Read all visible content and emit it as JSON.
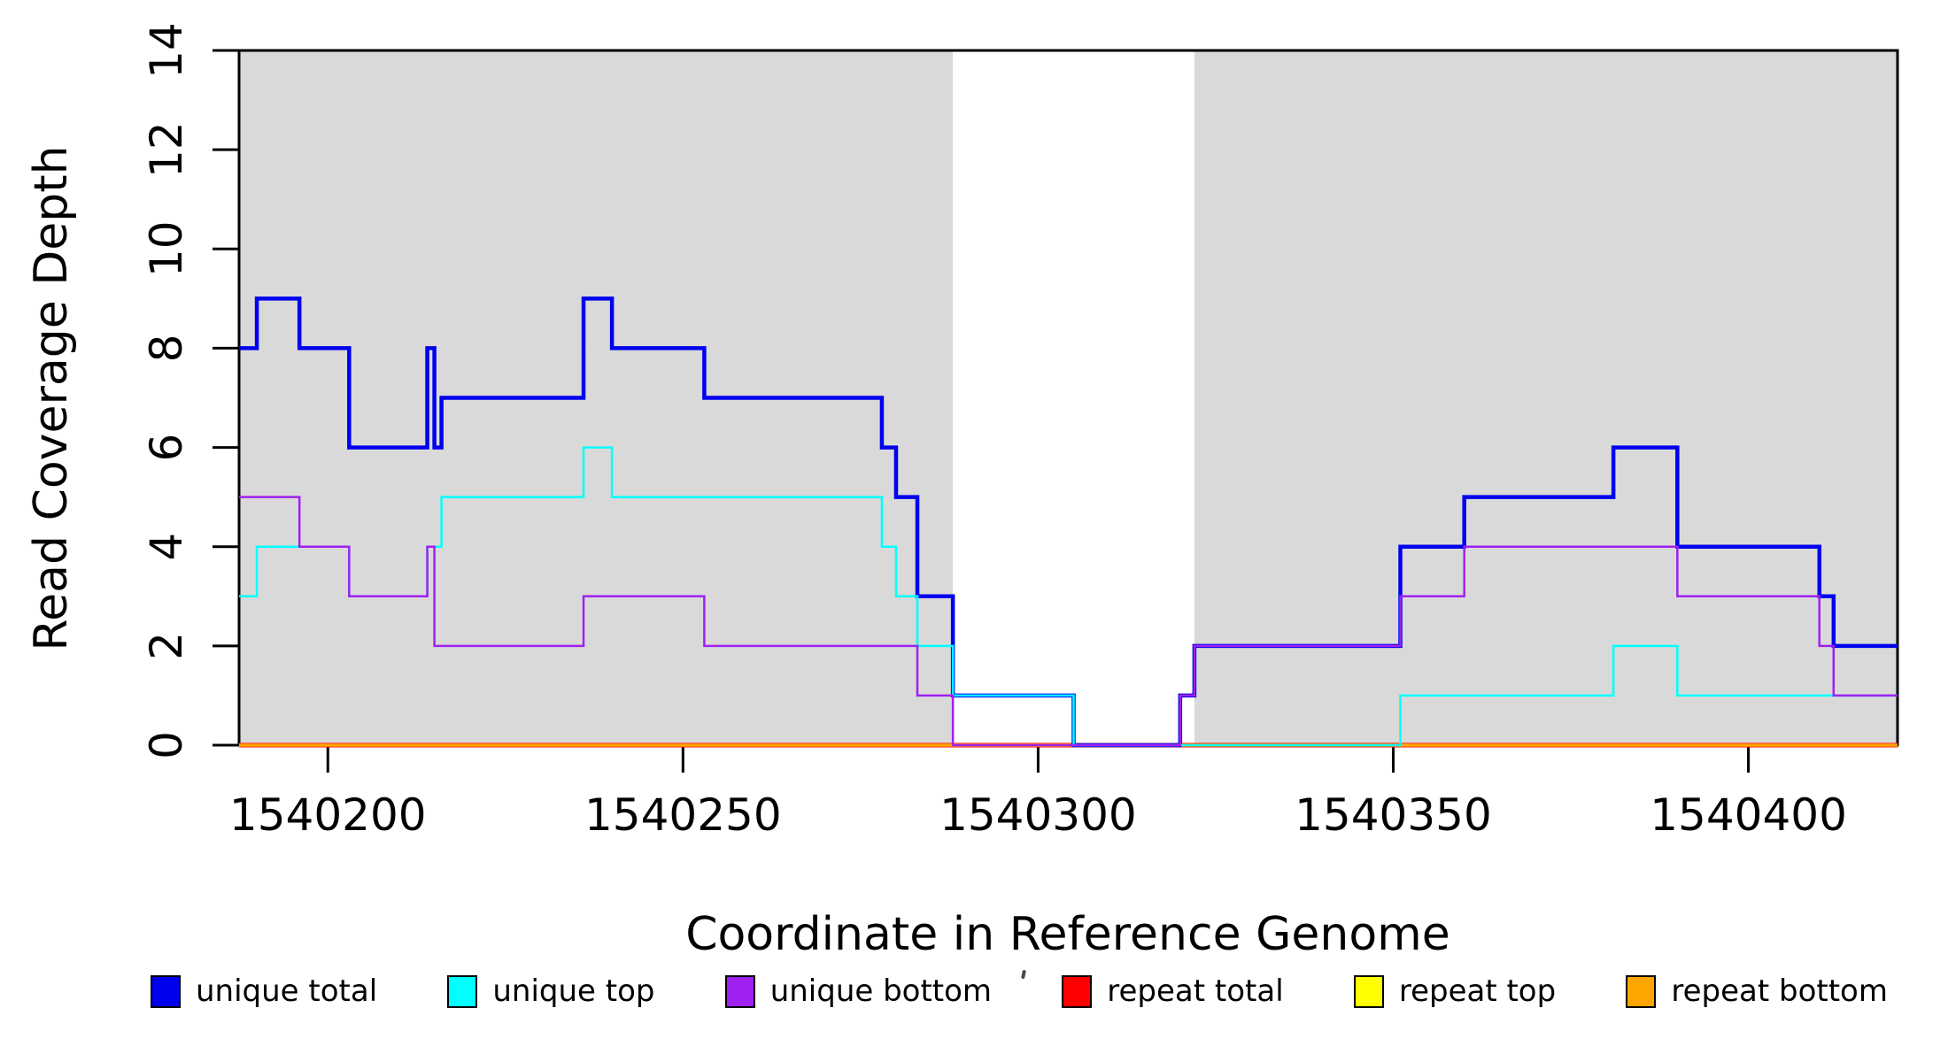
{
  "figure": {
    "y_axis_title": "Read Coverage Depth",
    "x_axis_title": "Coordinate in Reference Genome"
  },
  "chart_data": {
    "type": "line",
    "subtype": "step",
    "title": "",
    "xlabel": "Coordinate in Reference Genome",
    "ylabel": "Read Coverage Depth",
    "xlim": [
      1540187.5,
      1540421
    ],
    "ylim": [
      0,
      14
    ],
    "x_ticks": [
      1540200,
      1540250,
      1540300,
      1540350,
      1540400
    ],
    "y_ticks": [
      0,
      2,
      4,
      6,
      8,
      10,
      12,
      14
    ],
    "grid": false,
    "legend_position": "bottom",
    "colors": {
      "unique_total": "#0000F0",
      "unique_top": "#00FFFF",
      "unique_bottom": "#A020F0",
      "repeat_total": "#FF0000",
      "repeat_top": "#FFFF00",
      "repeat_bottom": "#FFA500",
      "shaded_region": "#D9D9D9",
      "axis": "#000000"
    },
    "background_regions": [
      {
        "name": "left-shaded-region",
        "x0": 1540187.5,
        "x1": 1540288,
        "color": "#D9D9D9"
      },
      {
        "name": "right-shaded-region",
        "x0": 1540322,
        "x1": 1540421,
        "color": "#D9D9D9"
      }
    ],
    "series": [
      {
        "name": "repeat total",
        "color": "#FF0000",
        "line_width": 5,
        "steps": [
          [
            1540187.5,
            0
          ]
        ]
      },
      {
        "name": "repeat top",
        "color": "#FFFF00",
        "line_width": 2.5,
        "steps": [
          [
            1540187.5,
            0
          ]
        ]
      },
      {
        "name": "repeat bottom",
        "color": "#FFA500",
        "line_width": 3.5,
        "steps": [
          [
            1540187.5,
            0
          ]
        ]
      },
      {
        "name": "unique total",
        "color": "#0000F0",
        "line_width": 4.5,
        "steps": [
          [
            1540187.5,
            8
          ],
          [
            1540190,
            9
          ],
          [
            1540196,
            8
          ],
          [
            1540203,
            6
          ],
          [
            1540214,
            8
          ],
          [
            1540215,
            6
          ],
          [
            1540216,
            7
          ],
          [
            1540236,
            9
          ],
          [
            1540240,
            8
          ],
          [
            1540253,
            7
          ],
          [
            1540278,
            6
          ],
          [
            1540280,
            5
          ],
          [
            1540283,
            3
          ],
          [
            1540288,
            1
          ],
          [
            1540305,
            0
          ],
          [
            1540320,
            1
          ],
          [
            1540322,
            2
          ],
          [
            1540351,
            4
          ],
          [
            1540360,
            5
          ],
          [
            1540381,
            6
          ],
          [
            1540390,
            4
          ],
          [
            1540410,
            3
          ],
          [
            1540412,
            2
          ]
        ]
      },
      {
        "name": "unique top",
        "color": "#00FFFF",
        "line_width": 2.5,
        "steps": [
          [
            1540187.5,
            3
          ],
          [
            1540190,
            4
          ],
          [
            1540203,
            3
          ],
          [
            1540214,
            4
          ],
          [
            1540216,
            5
          ],
          [
            1540236,
            6
          ],
          [
            1540240,
            5
          ],
          [
            1540278,
            4
          ],
          [
            1540280,
            3
          ],
          [
            1540283,
            2
          ],
          [
            1540288,
            1
          ],
          [
            1540305,
            0
          ],
          [
            1540351,
            1
          ],
          [
            1540381,
            2
          ],
          [
            1540390,
            1
          ]
        ]
      },
      {
        "name": "unique bottom",
        "color": "#A020F0",
        "line_width": 2.5,
        "steps": [
          [
            1540187.5,
            5
          ],
          [
            1540196,
            4
          ],
          [
            1540203,
            3
          ],
          [
            1540214,
            4
          ],
          [
            1540215,
            2
          ],
          [
            1540236,
            3
          ],
          [
            1540253,
            2
          ],
          [
            1540283,
            1
          ],
          [
            1540288,
            0
          ],
          [
            1540320,
            1
          ],
          [
            1540322,
            2
          ],
          [
            1540351,
            3
          ],
          [
            1540360,
            4
          ],
          [
            1540390,
            3
          ],
          [
            1540410,
            2
          ],
          [
            1540412,
            1
          ]
        ]
      }
    ],
    "legend": [
      {
        "label": "unique total",
        "color": "#0000F0"
      },
      {
        "label": "unique top",
        "color": "#00FFFF"
      },
      {
        "label": "unique bottom",
        "color": "#A020F0"
      },
      {
        "label": "repeat total",
        "color": "#FF0000"
      },
      {
        "label": "repeat top",
        "color": "#FFFF00"
      },
      {
        "label": "repeat bottom",
        "color": "#FFA500"
      }
    ]
  }
}
